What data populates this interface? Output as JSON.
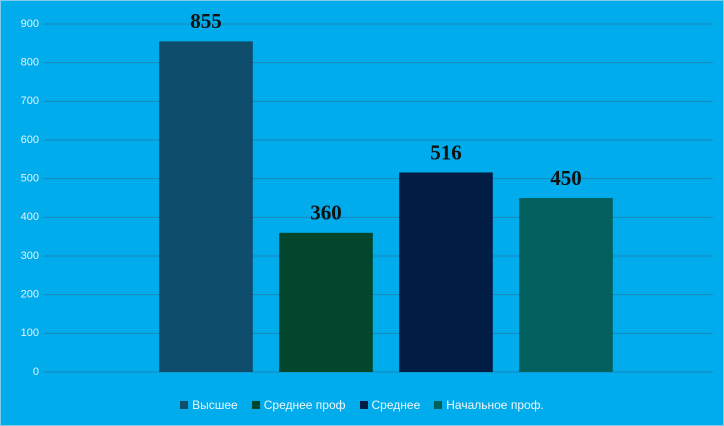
{
  "chart_data": {
    "type": "bar",
    "categories": [
      "Высшее",
      "Среднее проф",
      "Среднее",
      "Начальное проф."
    ],
    "values": [
      855,
      360,
      516,
      450
    ],
    "colors": [
      "#0e4d6c",
      "#01462d",
      "#011d44",
      "#02605f"
    ],
    "ylim": [
      0,
      900
    ],
    "yticks": [
      0,
      100,
      200,
      300,
      400,
      500,
      600,
      700,
      800,
      900
    ],
    "grid": true,
    "legend": "bottom"
  }
}
